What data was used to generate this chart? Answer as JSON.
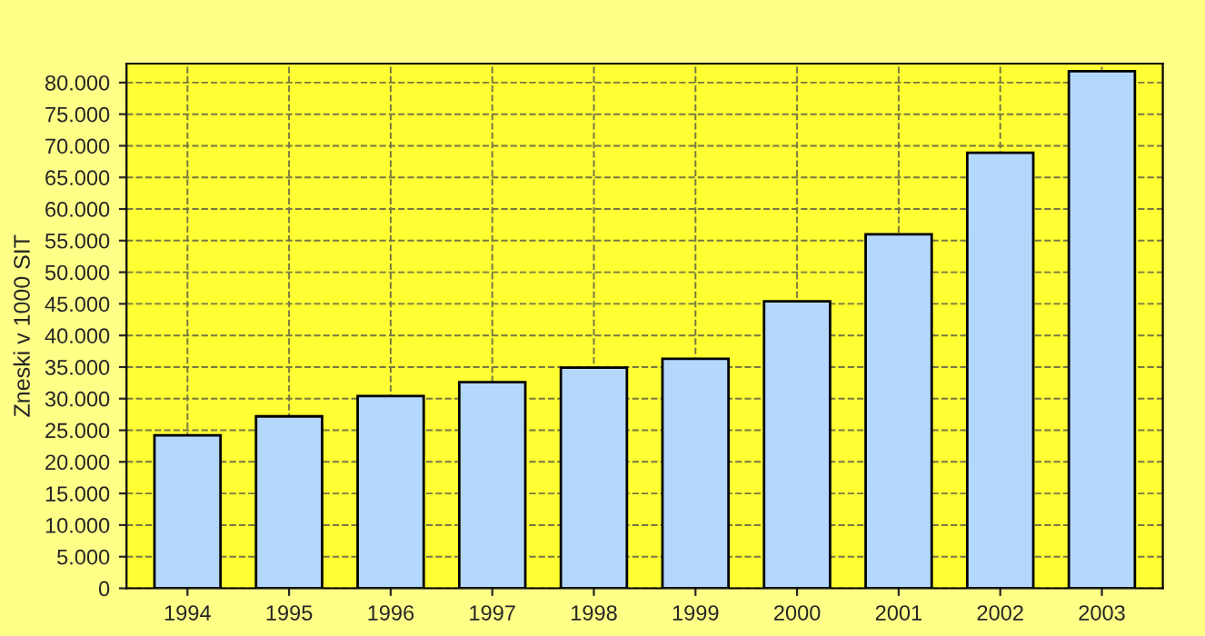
{
  "chart_data": {
    "type": "bar",
    "ylabel": "Zneski v 1000 SIT",
    "categories": [
      "1994",
      "1995",
      "1996",
      "1997",
      "1998",
      "1999",
      "2000",
      "2001",
      "2002",
      "2003"
    ],
    "values": [
      24200,
      27200,
      30400,
      32600,
      34900,
      36300,
      45400,
      56000,
      68900,
      81800
    ],
    "color": "#b4d8fc",
    "ylim": [
      0,
      83000
    ],
    "yticks": [
      0,
      {
        "value": 5000,
        "label": "5.000"
      },
      {
        "value": 10000,
        "label": "10.000"
      },
      {
        "value": 15000,
        "label": "15.000"
      },
      {
        "value": 20000,
        "label": "20.000"
      },
      {
        "value": 25000,
        "label": "25.000"
      },
      {
        "value": 30000,
        "label": "30.000"
      },
      {
        "value": 35000,
        "label": "35.000"
      },
      {
        "value": 40000,
        "label": "40.000"
      },
      {
        "value": 45000,
        "label": "45.000"
      },
      {
        "value": 50000,
        "label": "50.000"
      },
      {
        "value": 55000,
        "label": "55.000"
      },
      {
        "value": 60000,
        "label": "60.000"
      },
      {
        "value": 65000,
        "label": "65.000"
      },
      {
        "value": 70000,
        "label": "70.000"
      },
      {
        "value": 75000,
        "label": "75.000"
      },
      {
        "value": 80000,
        "label": "80.000"
      }
    ],
    "grid": true
  }
}
